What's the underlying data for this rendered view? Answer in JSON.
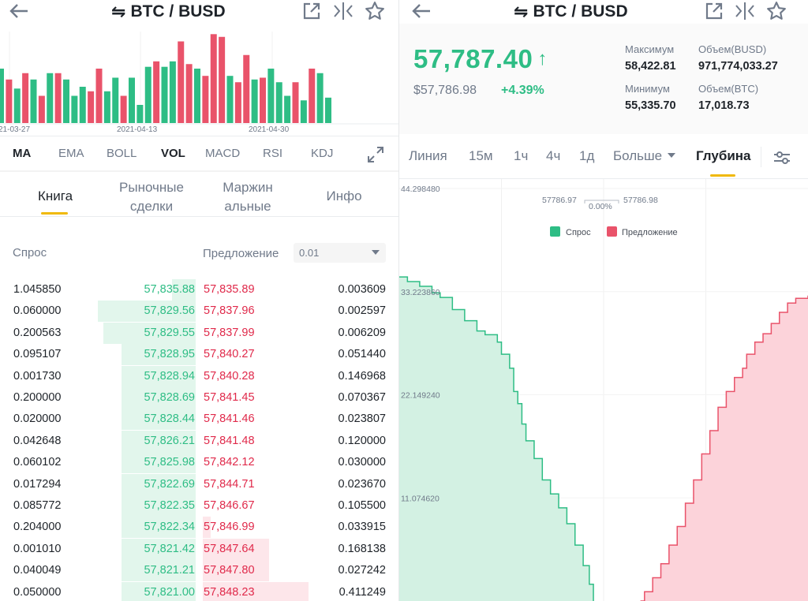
{
  "left": {
    "pair_label": "BTC / BUSD",
    "volume_chart": {
      "dates": [
        "21-03-27",
        "2021-04-13",
        "2021-04-30"
      ],
      "bars": [
        {
          "v": 0.6,
          "c": "g"
        },
        {
          "v": 0.48,
          "c": "r"
        },
        {
          "v": 0.38,
          "c": "g"
        },
        {
          "v": 0.55,
          "c": "r"
        },
        {
          "v": 0.48,
          "c": "g"
        },
        {
          "v": 0.3,
          "c": "r"
        },
        {
          "v": 0.55,
          "c": "g"
        },
        {
          "v": 0.55,
          "c": "r"
        },
        {
          "v": 0.48,
          "c": "g"
        },
        {
          "v": 0.3,
          "c": "g"
        },
        {
          "v": 0.4,
          "c": "g"
        },
        {
          "v": 0.35,
          "c": "r"
        },
        {
          "v": 0.6,
          "c": "r"
        },
        {
          "v": 0.35,
          "c": "g"
        },
        {
          "v": 0.5,
          "c": "g"
        },
        {
          "v": 0.3,
          "c": "r"
        },
        {
          "v": 0.5,
          "c": "g"
        },
        {
          "v": 0.2,
          "c": "g"
        },
        {
          "v": 0.62,
          "c": "g"
        },
        {
          "v": 0.68,
          "c": "r"
        },
        {
          "v": 0.62,
          "c": "g"
        },
        {
          "v": 0.68,
          "c": "g"
        },
        {
          "v": 0.9,
          "c": "r"
        },
        {
          "v": 0.65,
          "c": "r"
        },
        {
          "v": 0.6,
          "c": "g"
        },
        {
          "v": 0.52,
          "c": "r"
        },
        {
          "v": 0.98,
          "c": "r"
        },
        {
          "v": 0.95,
          "c": "r"
        },
        {
          "v": 0.52,
          "c": "g"
        },
        {
          "v": 0.45,
          "c": "r"
        },
        {
          "v": 0.75,
          "c": "r"
        },
        {
          "v": 0.48,
          "c": "g"
        },
        {
          "v": 0.5,
          "c": "r"
        },
        {
          "v": 0.6,
          "c": "g"
        },
        {
          "v": 0.45,
          "c": "g"
        },
        {
          "v": 0.3,
          "c": "g"
        },
        {
          "v": 0.45,
          "c": "r"
        },
        {
          "v": 0.25,
          "c": "g"
        },
        {
          "v": 0.6,
          "c": "r"
        },
        {
          "v": 0.55,
          "c": "g"
        },
        {
          "v": 0.28,
          "c": "g"
        }
      ]
    },
    "indicators": [
      "MA",
      "EMA",
      "BOLL",
      "VOL",
      "MACD",
      "RSI",
      "KDJ"
    ],
    "book_tabs": [
      "Книга",
      "Рыночные сделки",
      "Маржин альные",
      "Инфо"
    ],
    "bid_label": "Спрос",
    "ask_label": "Предложение",
    "step_value": "0.01",
    "orderbook": [
      {
        "bid_qty": "1.045850",
        "bid_price": "57,835.88",
        "ask_price": "57,835.89",
        "ask_qty": "0.003609",
        "bid_depth": 0.12,
        "ask_depth": 0.0
      },
      {
        "bid_qty": "0.060000",
        "bid_price": "57,829.56",
        "ask_price": "57,837.96",
        "ask_qty": "0.002597",
        "bid_depth": 0.5,
        "ask_depth": 0.0
      },
      {
        "bid_qty": "0.200563",
        "bid_price": "57,829.55",
        "ask_price": "57,837.99",
        "ask_qty": "0.006209",
        "bid_depth": 0.47,
        "ask_depth": 0.0
      },
      {
        "bid_qty": "0.095107",
        "bid_price": "57,828.95",
        "ask_price": "57,840.27",
        "ask_qty": "0.051440",
        "bid_depth": 0.38,
        "ask_depth": 0.0
      },
      {
        "bid_qty": "0.001730",
        "bid_price": "57,828.94",
        "ask_price": "57,840.28",
        "ask_qty": "0.146968",
        "bid_depth": 0.38,
        "ask_depth": 0.0
      },
      {
        "bid_qty": "0.200000",
        "bid_price": "57,828.69",
        "ask_price": "57,841.45",
        "ask_qty": "0.070367",
        "bid_depth": 0.38,
        "ask_depth": 0.0
      },
      {
        "bid_qty": "0.020000",
        "bid_price": "57,828.44",
        "ask_price": "57,841.46",
        "ask_qty": "0.023807",
        "bid_depth": 0.38,
        "ask_depth": 0.0
      },
      {
        "bid_qty": "0.042648",
        "bid_price": "57,826.21",
        "ask_price": "57,841.48",
        "ask_qty": "0.120000",
        "bid_depth": 0.38,
        "ask_depth": 0.0
      },
      {
        "bid_qty": "0.060102",
        "bid_price": "57,825.98",
        "ask_price": "57,842.12",
        "ask_qty": "0.030000",
        "bid_depth": 0.38,
        "ask_depth": 0.0
      },
      {
        "bid_qty": "0.017294",
        "bid_price": "57,822.69",
        "ask_price": "57,844.71",
        "ask_qty": "0.023670",
        "bid_depth": 0.38,
        "ask_depth": 0.0
      },
      {
        "bid_qty": "0.085772",
        "bid_price": "57,822.35",
        "ask_price": "57,846.67",
        "ask_qty": "0.105500",
        "bid_depth": 0.38,
        "ask_depth": 0.0
      },
      {
        "bid_qty": "0.204000",
        "bid_price": "57,822.34",
        "ask_price": "57,846.99",
        "ask_qty": "0.033915",
        "bid_depth": 0.38,
        "ask_depth": 0.04
      },
      {
        "bid_qty": "0.001010",
        "bid_price": "57,821.42",
        "ask_price": "57,847.64",
        "ask_qty": "0.168138",
        "bid_depth": 0.38,
        "ask_depth": 0.34
      },
      {
        "bid_qty": "0.040049",
        "bid_price": "57,821.21",
        "ask_price": "57,847.80",
        "ask_qty": "0.027242",
        "bid_depth": 0.38,
        "ask_depth": 0.34
      },
      {
        "bid_qty": "0.050000",
        "bid_price": "57,821.00",
        "ask_price": "57,848.23",
        "ask_qty": "0.411249",
        "bid_depth": 0.38,
        "ask_depth": 0.54
      }
    ]
  },
  "right": {
    "pair_label": "BTC / BUSD",
    "last_price": "57,787.40",
    "last_price_arrow": "↑",
    "price_usd": "$57,786.98",
    "change_pct": "+4.39%",
    "stats": {
      "high_label": "Максимум",
      "high_value": "58,422.81",
      "vol_quote_label": "Объем(BUSD)",
      "vol_quote_value": "971,774,033.27",
      "low_label": "Минимум",
      "low_value": "55,335.70",
      "vol_base_label": "Объем(BTC)",
      "vol_base_value": "17,018.73"
    },
    "timeframes": [
      "Линия",
      "15м",
      "1ч",
      "4ч",
      "1д",
      "Больше",
      "Глубина"
    ],
    "depth_chart": {
      "y_ticks": [
        "44.298480",
        "33.223860",
        "22.149240",
        "11.074620"
      ],
      "mid_bid": "57786.97",
      "mid_ask": "57786.98",
      "spread": "0.00%",
      "legend_bid": "Спрос",
      "legend_ask": "Предложение",
      "ymax": 44.29848,
      "bid_curve": [
        [
          0,
          34.8
        ],
        [
          0.02,
          34.3
        ],
        [
          0.05,
          33.8
        ],
        [
          0.08,
          33.1
        ],
        [
          0.1,
          32.6
        ],
        [
          0.13,
          31.3
        ],
        [
          0.16,
          30.1
        ],
        [
          0.19,
          29.0
        ],
        [
          0.21,
          28.6
        ],
        [
          0.24,
          27.8
        ],
        [
          0.25,
          26.5
        ],
        [
          0.27,
          25.0
        ],
        [
          0.28,
          22.5
        ],
        [
          0.29,
          21.2
        ],
        [
          0.3,
          19.0
        ],
        [
          0.31,
          17.2
        ],
        [
          0.33,
          15.3
        ],
        [
          0.35,
          13.0
        ],
        [
          0.37,
          11.5
        ],
        [
          0.39,
          10.0
        ],
        [
          0.41,
          8.3
        ],
        [
          0.43,
          6.0
        ],
        [
          0.45,
          3.8
        ],
        [
          0.465,
          1.8
        ],
        [
          0.475,
          0
        ]
      ],
      "ask_curve": [
        [
          0.59,
          0
        ],
        [
          0.6,
          1.0
        ],
        [
          0.62,
          2.5
        ],
        [
          0.64,
          4.0
        ],
        [
          0.66,
          6.0
        ],
        [
          0.68,
          8.0
        ],
        [
          0.7,
          10.5
        ],
        [
          0.72,
          13.0
        ],
        [
          0.74,
          15.8
        ],
        [
          0.76,
          18.3
        ],
        [
          0.78,
          20.8
        ],
        [
          0.8,
          22.5
        ],
        [
          0.82,
          24.0
        ],
        [
          0.84,
          25.0
        ],
        [
          0.85,
          26.5
        ],
        [
          0.87,
          27.8
        ],
        [
          0.89,
          28.7
        ],
        [
          0.91,
          29.8
        ],
        [
          0.93,
          31.0
        ],
        [
          0.95,
          32.0
        ],
        [
          0.97,
          32.5
        ],
        [
          1.0,
          32.8
        ]
      ]
    }
  }
}
